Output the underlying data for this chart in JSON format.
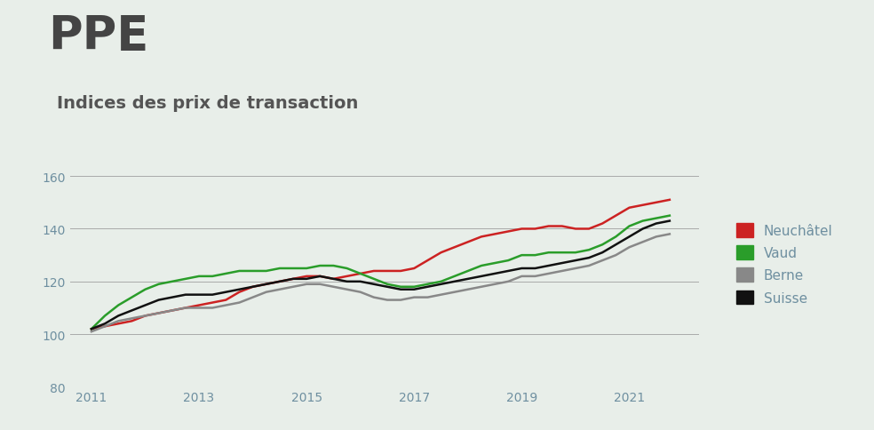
{
  "title_main": "PPE",
  "title_sub": "Indices des prix de transaction",
  "background_color": "#e8eee9",
  "grid_color": "#aaaaaa",
  "ylim": [
    80,
    165
  ],
  "yticks": [
    80,
    100,
    120,
    140,
    160
  ],
  "years": [
    2011.0,
    2011.25,
    2011.5,
    2011.75,
    2012.0,
    2012.25,
    2012.5,
    2012.75,
    2013.0,
    2013.25,
    2013.5,
    2013.75,
    2014.0,
    2014.25,
    2014.5,
    2014.75,
    2015.0,
    2015.25,
    2015.5,
    2015.75,
    2016.0,
    2016.25,
    2016.5,
    2016.75,
    2017.0,
    2017.25,
    2017.5,
    2017.75,
    2018.0,
    2018.25,
    2018.5,
    2018.75,
    2019.0,
    2019.25,
    2019.5,
    2019.75,
    2020.0,
    2020.25,
    2020.5,
    2020.75,
    2021.0,
    2021.25,
    2021.5,
    2021.75
  ],
  "neuchatel": [
    102,
    103,
    104,
    105,
    107,
    108,
    109,
    110,
    111,
    112,
    113,
    116,
    118,
    119,
    120,
    121,
    122,
    122,
    121,
    122,
    123,
    124,
    124,
    124,
    125,
    128,
    131,
    133,
    135,
    137,
    138,
    139,
    140,
    140,
    141,
    141,
    140,
    140,
    142,
    145,
    148,
    149,
    150,
    151
  ],
  "vaud": [
    102,
    107,
    111,
    114,
    117,
    119,
    120,
    121,
    122,
    122,
    123,
    124,
    124,
    124,
    125,
    125,
    125,
    126,
    126,
    125,
    123,
    121,
    119,
    118,
    118,
    119,
    120,
    122,
    124,
    126,
    127,
    128,
    130,
    130,
    131,
    131,
    131,
    132,
    134,
    137,
    141,
    143,
    144,
    145
  ],
  "berne": [
    101,
    103,
    105,
    106,
    107,
    108,
    109,
    110,
    110,
    110,
    111,
    112,
    114,
    116,
    117,
    118,
    119,
    119,
    118,
    117,
    116,
    114,
    113,
    113,
    114,
    114,
    115,
    116,
    117,
    118,
    119,
    120,
    122,
    122,
    123,
    124,
    125,
    126,
    128,
    130,
    133,
    135,
    137,
    138
  ],
  "suisse": [
    102,
    104,
    107,
    109,
    111,
    113,
    114,
    115,
    115,
    115,
    116,
    117,
    118,
    119,
    120,
    121,
    121,
    122,
    121,
    120,
    120,
    119,
    118,
    117,
    117,
    118,
    119,
    120,
    121,
    122,
    123,
    124,
    125,
    125,
    126,
    127,
    128,
    129,
    131,
    134,
    137,
    140,
    142,
    143
  ],
  "series_colors": [
    "#cc2222",
    "#2a9d2a",
    "#888888",
    "#111111"
  ],
  "series_labels": [
    "Neuchâtel",
    "Vaud",
    "Berne",
    "Suisse"
  ],
  "series_linewidths": [
    1.8,
    1.8,
    1.8,
    1.8
  ],
  "xticks": [
    2011,
    2013,
    2015,
    2017,
    2019,
    2021
  ],
  "xlim": [
    2010.6,
    2022.3
  ],
  "tick_label_color": "#6e8fa0",
  "title_main_color": "#444444",
  "title_sub_color": "#555555",
  "legend_text_color": "#6e8fa0"
}
